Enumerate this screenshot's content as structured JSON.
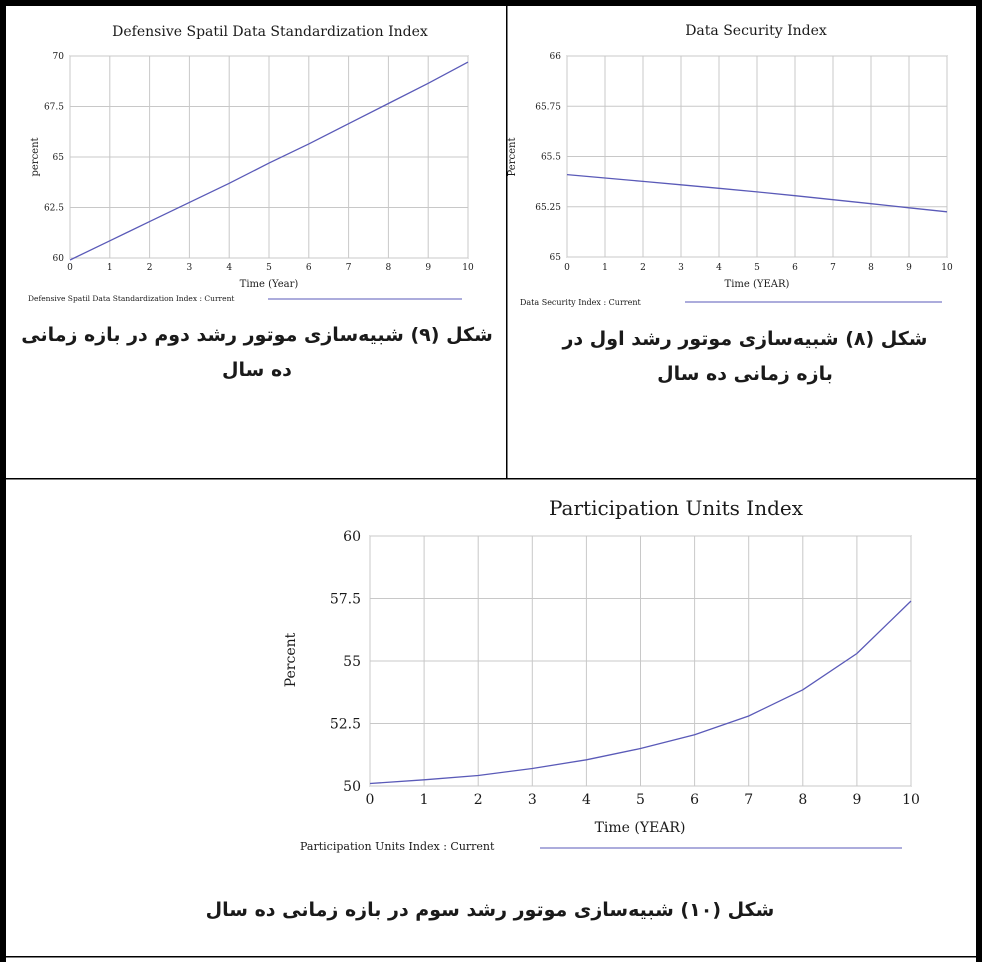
{
  "page": {
    "colors": {
      "border": "#000000",
      "grid": "#c8c8c8",
      "series": "#5a5ab8",
      "text": "#1a1a1a"
    }
  },
  "captions": {
    "fig9": "شکل (۹) شبیه‌سازی موتور رشد دوم در بازه زمانی ده سال",
    "fig8": "شکل (۸) شبیه‌سازی موتور رشد اول در بازه زمانی ده سال",
    "fig10": "شکل (۱۰) شبیه‌سازی موتور رشد سوم در بازه زمانی ده سال"
  },
  "chart_data": [
    {
      "id": "c9",
      "type": "line",
      "title": "Defensive Spatil Data Standardization Index",
      "xlabel": "Time (Year)",
      "ylabel": "percent",
      "xlim": [
        0,
        10
      ],
      "ylim": [
        60,
        70
      ],
      "xticks": [
        0,
        1,
        2,
        3,
        4,
        5,
        6,
        7,
        8,
        9,
        10
      ],
      "yticks": [
        60,
        62.5,
        65,
        67.5,
        70
      ],
      "ytick_labels": [
        "60",
        "62.5",
        "65",
        "67.5",
        "70"
      ],
      "grid": true,
      "legend": "Defensive Spatil Data Standardization Index : Current",
      "series": [
        {
          "name": "Current",
          "x": [
            0,
            1,
            2,
            3,
            4,
            5,
            6,
            7,
            8,
            9,
            10
          ],
          "y": [
            59.9,
            60.85,
            61.8,
            62.75,
            63.7,
            64.7,
            65.65,
            66.65,
            67.65,
            68.65,
            69.7
          ]
        }
      ]
    },
    {
      "id": "c8",
      "type": "line",
      "title": "Data Security Index",
      "xlabel": "Time (YEAR)",
      "ylabel": "Percent",
      "xlim": [
        0,
        10
      ],
      "ylim": [
        65,
        66
      ],
      "xticks": [
        0,
        1,
        2,
        3,
        4,
        5,
        6,
        7,
        8,
        9,
        10
      ],
      "yticks": [
        65,
        65.25,
        65.5,
        65.75,
        66
      ],
      "ytick_labels": [
        "65",
        "65.25",
        "65.5",
        "65.75",
        "66"
      ],
      "grid": true,
      "legend": "Data Security Index : Current",
      "series": [
        {
          "name": "Current",
          "x": [
            0,
            1,
            2,
            3,
            4,
            5,
            6,
            7,
            8,
            9,
            10
          ],
          "y": [
            65.41,
            65.393,
            65.376,
            65.359,
            65.342,
            65.324,
            65.305,
            65.285,
            65.265,
            65.245,
            65.225
          ]
        }
      ]
    },
    {
      "id": "c10",
      "type": "line",
      "title": "Participation Units Index",
      "xlabel": "Time (YEAR)",
      "ylabel": "Percent",
      "xlim": [
        0,
        10
      ],
      "ylim": [
        50,
        60
      ],
      "xticks": [
        0,
        1,
        2,
        3,
        4,
        5,
        6,
        7,
        8,
        9,
        10
      ],
      "yticks": [
        50,
        52.5,
        55,
        57.5,
        60
      ],
      "ytick_labels": [
        "50",
        "52.5",
        "55",
        "57.5",
        "60"
      ],
      "grid": true,
      "legend": "Participation Units Index : Current",
      "series": [
        {
          "name": "Current",
          "x": [
            0,
            1,
            2,
            3,
            4,
            5,
            6,
            7,
            8,
            9,
            10
          ],
          "y": [
            50.1,
            50.25,
            50.42,
            50.7,
            51.05,
            51.5,
            52.05,
            52.8,
            53.85,
            55.3,
            57.4
          ]
        }
      ]
    }
  ]
}
